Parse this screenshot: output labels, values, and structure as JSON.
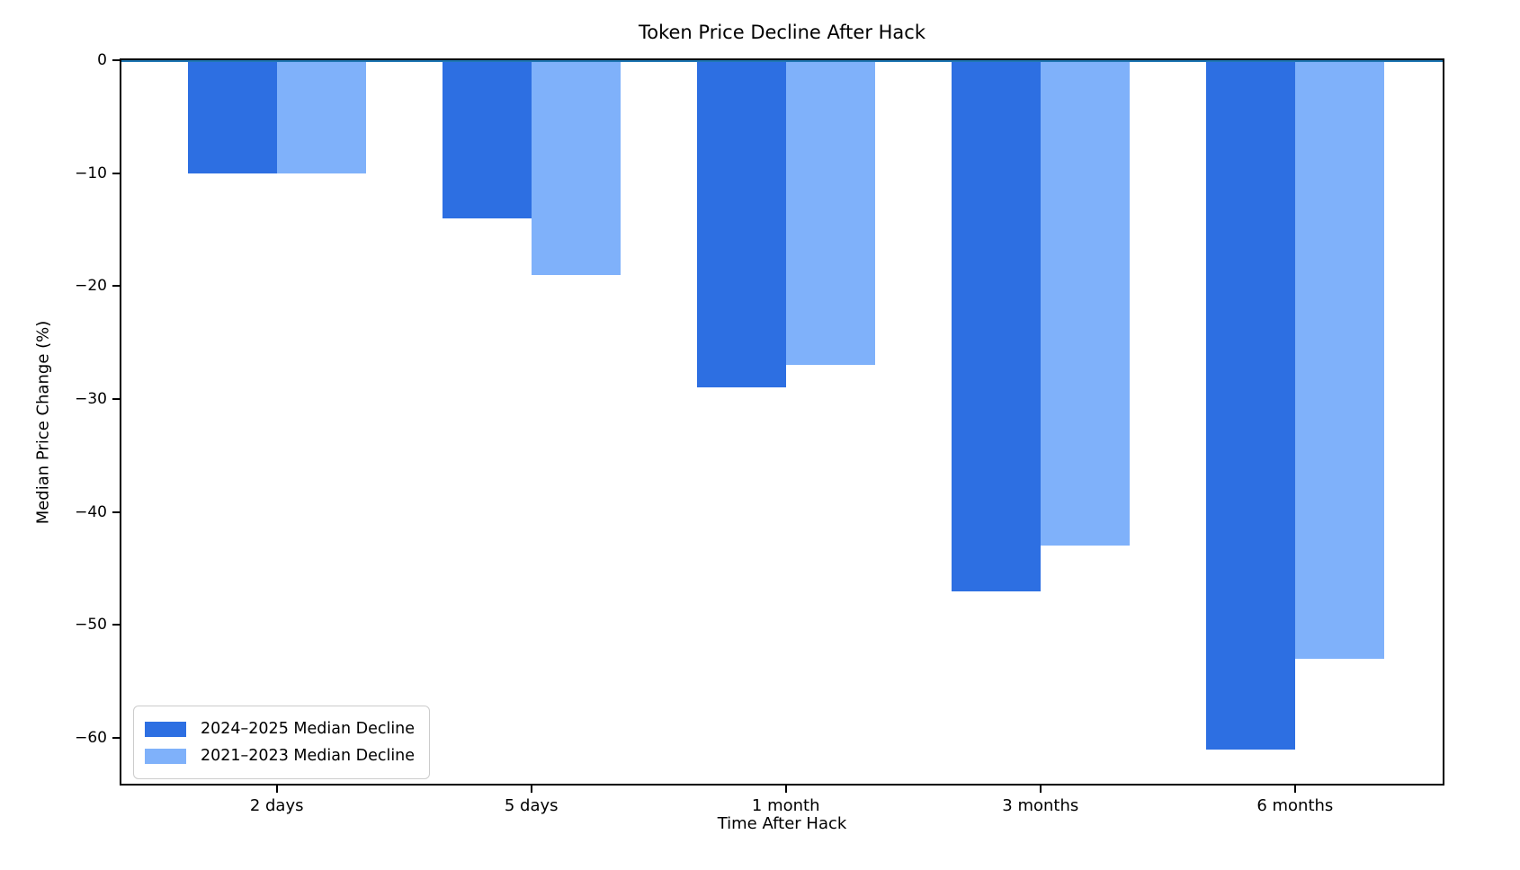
{
  "chart_data": {
    "type": "bar",
    "title": "Token Price Decline After Hack",
    "xlabel": "Time After Hack",
    "ylabel": "Median Price Change (%)",
    "categories": [
      "2 days",
      "5 days",
      "1 month",
      "3 months",
      "6 months"
    ],
    "series": [
      {
        "name": "2024–2025 Median Decline",
        "color": "#2d6fe2",
        "values": [
          -10,
          -14,
          -29,
          -47,
          -61
        ]
      },
      {
        "name": "2021–2023 Median Decline",
        "color": "#7fb1fa",
        "values": [
          -10,
          -19,
          -27,
          -43,
          -53
        ]
      }
    ],
    "ylim": [
      -64.05,
      0
    ],
    "xlim": [
      -0.61,
      4.58
    ],
    "yticks": [
      0,
      -10,
      -20,
      -30,
      -40,
      -50,
      -60
    ],
    "ytick_labels": [
      "0",
      "−10",
      "−20",
      "−30",
      "−40",
      "−50",
      "−60"
    ],
    "bar_width_frac": 0.35,
    "grid": false,
    "legend_position": "lower left",
    "zero_line_color": "#1f77b4",
    "spine_color": "#000000",
    "background_color": "#ffffff"
  }
}
